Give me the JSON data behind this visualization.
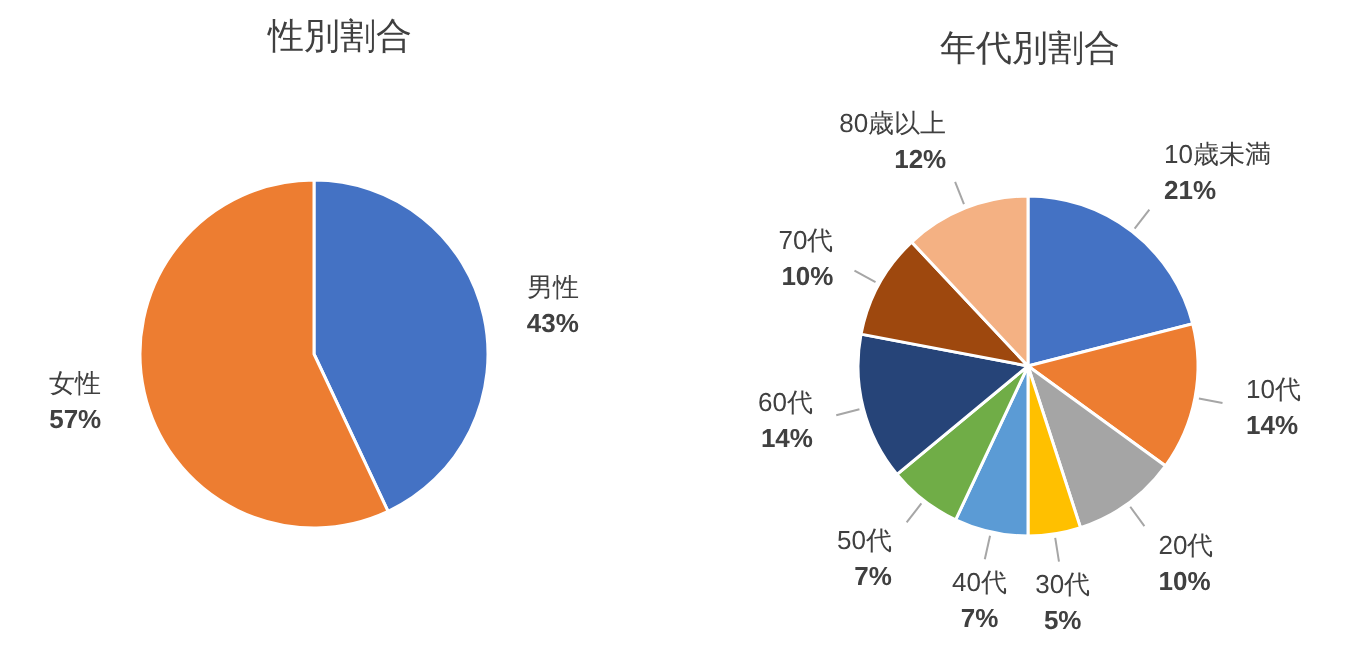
{
  "chart_data": [
    {
      "type": "pie",
      "title": "性別割合",
      "categories": [
        "男性",
        "女性"
      ],
      "values": [
        43,
        57
      ],
      "colors": [
        "#4472c4",
        "#ed7d31"
      ],
      "value_labels": [
        "43%",
        "57%"
      ]
    },
    {
      "type": "pie",
      "title": "年代別割合",
      "categories": [
        "10歳未満",
        "10代",
        "20代",
        "30代",
        "40代",
        "50代",
        "60代",
        "70代",
        "80歳以上"
      ],
      "values": [
        21,
        14,
        10,
        5,
        7,
        7,
        14,
        10,
        12
      ],
      "colors": [
        "#4472c4",
        "#ed7d31",
        "#a5a5a5",
        "#ffc000",
        "#5b9bd5",
        "#70ad47",
        "#264478",
        "#9e480e",
        "#f4b183"
      ],
      "value_labels": [
        "21%",
        "14%",
        "10%",
        "5%",
        "7%",
        "7%",
        "14%",
        "10%",
        "12%"
      ]
    }
  ]
}
